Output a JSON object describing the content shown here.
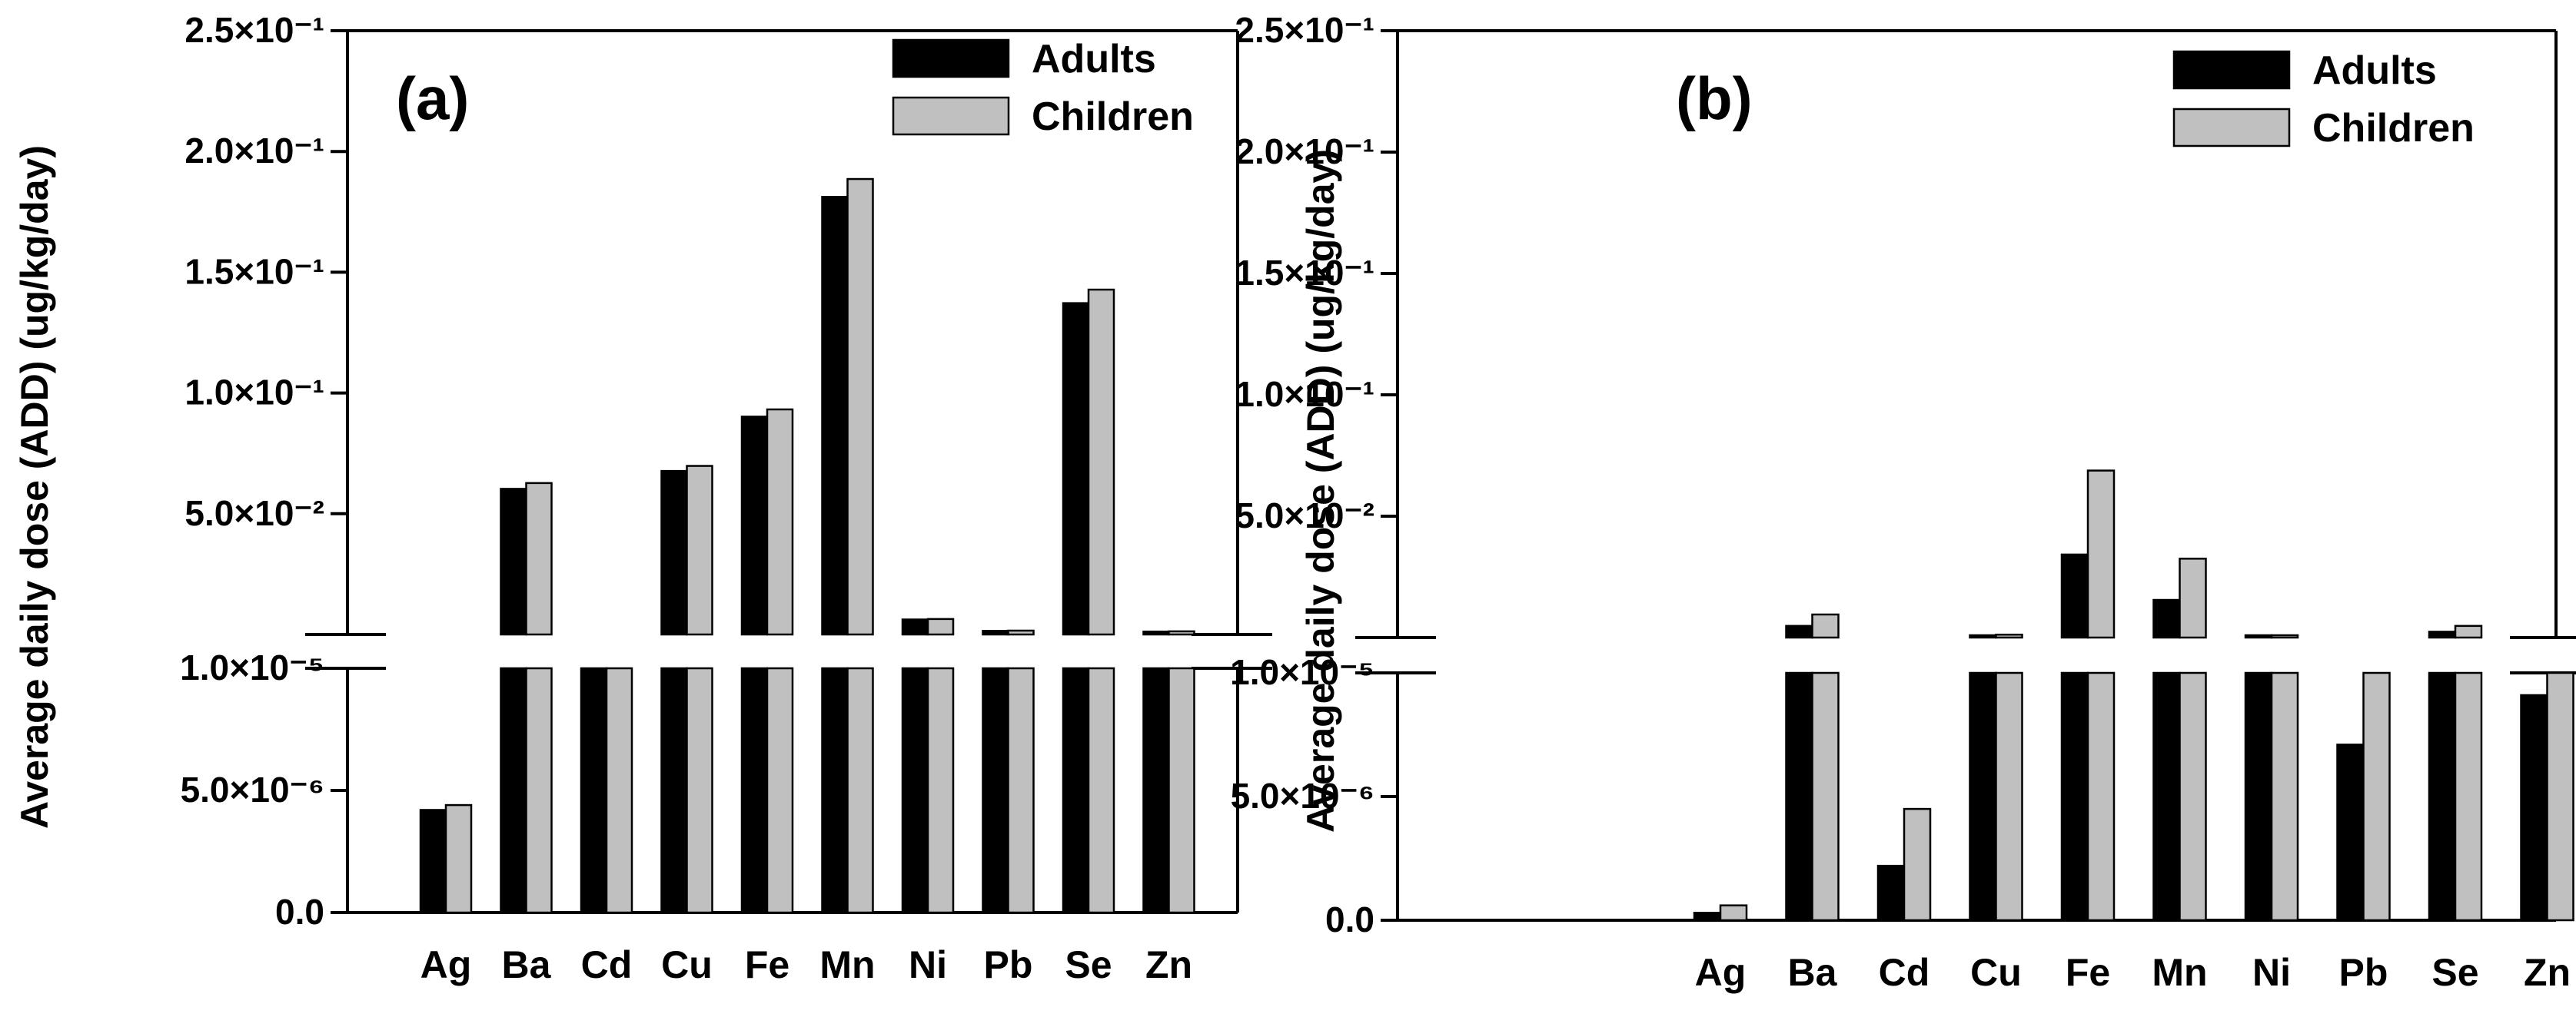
{
  "chart_data": [
    {
      "type": "bar",
      "panel_label": "(a)",
      "ylabel": "Average daily dose (ADD) (ug/kg/day)",
      "axis_break": true,
      "lower_segment": {
        "ylim": [
          0,
          1e-05
        ],
        "ticks": [
          "0.0",
          "5.0×10⁻⁶",
          "1.0×10⁻⁵"
        ],
        "tick_values": [
          0,
          5e-06,
          1e-05
        ]
      },
      "upper_segment": {
        "ylim": [
          0,
          0.25
        ],
        "ticks": [
          "5.0×10⁻²",
          "1.0×10⁻¹",
          "1.5×10⁻¹",
          "2.0×10⁻¹",
          "2.5×10⁻¹"
        ],
        "tick_values": [
          0.05,
          0.1,
          0.15,
          0.2,
          0.25
        ]
      },
      "categories": [
        "Ag",
        "Ba",
        "Cd",
        "Cu",
        "Fe",
        "Mn",
        "Ni",
        "Pb",
        "Se",
        "Zn"
      ],
      "series": [
        {
          "name": "Adults",
          "color": "#000000",
          "values": [
            4.2e-06,
            0.0603,
            1e-05,
            0.0677,
            0.0902,
            0.1812,
            0.0062,
            0.0015,
            0.1372,
            0.0012
          ]
        },
        {
          "name": "Children",
          "color": "#c0c0c0",
          "values": [
            4.4e-06,
            0.0627,
            1e-05,
            0.0698,
            0.0932,
            0.1886,
            0.0064,
            0.0016,
            0.1428,
            0.0013
          ]
        }
      ],
      "legend": "top-right"
    },
    {
      "type": "bar",
      "panel_label": "(b)",
      "ylabel": "Average daily dose (ADD) (ug/kg/day)",
      "axis_break": true,
      "lower_segment": {
        "ylim": [
          0,
          1e-05
        ],
        "ticks": [
          "0.0",
          "5.0×10⁻⁶",
          "1.0×10⁻⁵"
        ],
        "tick_values": [
          0,
          5e-06,
          1e-05
        ]
      },
      "upper_segment": {
        "ylim": [
          0,
          0.25
        ],
        "ticks": [
          "5.0×10⁻²",
          "1.0×10⁻¹",
          "1.5×10⁻¹",
          "2.0×10⁻¹",
          "2.5×10⁻¹"
        ],
        "tick_values": [
          0.05,
          0.1,
          0.15,
          0.2,
          0.25
        ]
      },
      "categories": [
        "Ag",
        "Ba",
        "Cd",
        "Cu",
        "Fe",
        "Mn",
        "Ni",
        "Pb",
        "Se",
        "Zn"
      ],
      "series": [
        {
          "name": "Adults",
          "color": "#000000",
          "values": [
            3e-07,
            0.0048,
            2.2e-06,
            0.0008,
            0.0342,
            0.0155,
            0.0004,
            7.1e-06,
            0.0024,
            9.1e-06
          ]
        },
        {
          "name": "Children",
          "color": "#c0c0c0",
          "values": [
            6e-07,
            0.0095,
            4.5e-06,
            0.0012,
            0.0688,
            0.0325,
            0.0006,
            1e-05,
            0.0048,
            1e-05
          ]
        }
      ],
      "legend": "top-right"
    }
  ]
}
